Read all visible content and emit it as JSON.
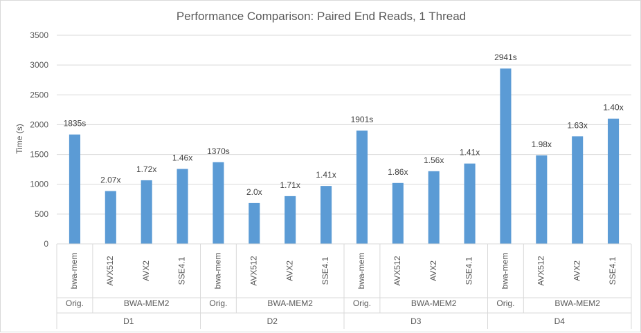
{
  "chart_data": {
    "type": "bar",
    "title": "Performance Comparison: Paired End Reads, 1 Thread",
    "ylabel": "Time (s)",
    "xlabel": "",
    "ylim": [
      0,
      3500
    ],
    "yticks": [
      0,
      500,
      1000,
      1500,
      2000,
      2500,
      3000,
      3500
    ],
    "grid": true,
    "bar_color": "#5b9bd5",
    "groups": [
      {
        "dataset": "D1",
        "subgroups": [
          {
            "name": "Orig.",
            "bars": [
              {
                "category": "bwa-mem",
                "value": 1835,
                "label": "1835s"
              }
            ]
          },
          {
            "name": "BWA-MEM2",
            "bars": [
              {
                "category": "AVX512",
                "value": 886,
                "label": "2.07x"
              },
              {
                "category": "AVX2",
                "value": 1067,
                "label": "1.72x"
              },
              {
                "category": "SSE4.1",
                "value": 1257,
                "label": "1.46x"
              }
            ]
          }
        ]
      },
      {
        "dataset": "D2",
        "subgroups": [
          {
            "name": "Orig.",
            "bars": [
              {
                "category": "bwa-mem",
                "value": 1370,
                "label": "1370s"
              }
            ]
          },
          {
            "name": "BWA-MEM2",
            "bars": [
              {
                "category": "AVX512",
                "value": 685,
                "label": "2.0x"
              },
              {
                "category": "AVX2",
                "value": 801,
                "label": "1.71x"
              },
              {
                "category": "SSE4.1",
                "value": 972,
                "label": "1.41x"
              }
            ]
          }
        ]
      },
      {
        "dataset": "D3",
        "subgroups": [
          {
            "name": "Orig.",
            "bars": [
              {
                "category": "bwa-mem",
                "value": 1901,
                "label": "1901s"
              }
            ]
          },
          {
            "name": "BWA-MEM2",
            "bars": [
              {
                "category": "AVX512",
                "value": 1022,
                "label": "1.86x"
              },
              {
                "category": "AVX2",
                "value": 1219,
                "label": "1.56x"
              },
              {
                "category": "SSE4.1",
                "value": 1348,
                "label": "1.41x"
              }
            ]
          }
        ]
      },
      {
        "dataset": "D4",
        "subgroups": [
          {
            "name": "Orig.",
            "bars": [
              {
                "category": "bwa-mem",
                "value": 2941,
                "label": "2941s"
              }
            ]
          },
          {
            "name": "BWA-MEM2",
            "bars": [
              {
                "category": "AVX512",
                "value": 1485,
                "label": "1.98x"
              },
              {
                "category": "AVX2",
                "value": 1804,
                "label": "1.63x"
              },
              {
                "category": "SSE4.1",
                "value": 2101,
                "label": "1.40x"
              }
            ]
          }
        ]
      }
    ]
  }
}
